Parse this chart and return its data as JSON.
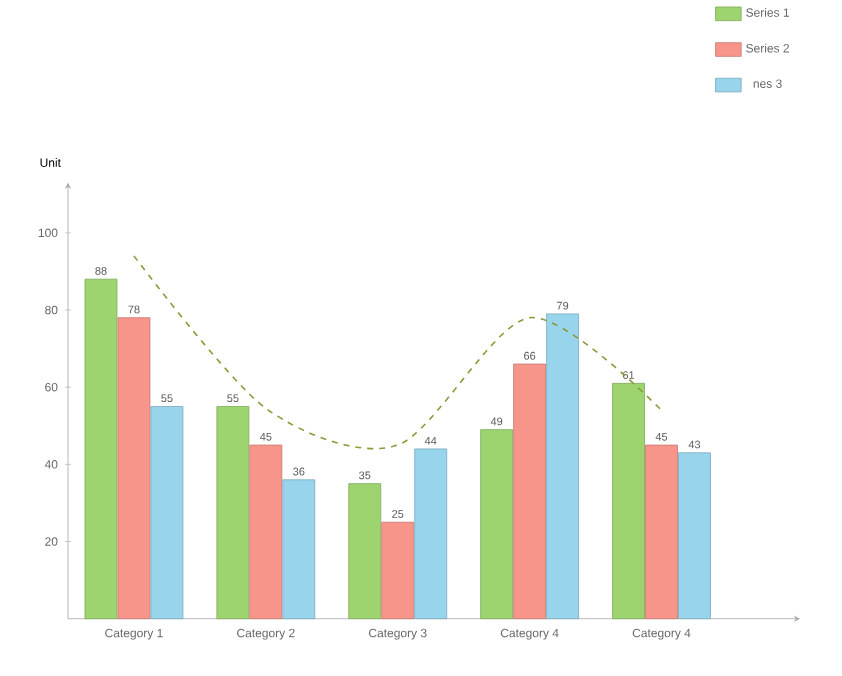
{
  "chart_data": {
    "type": "bar",
    "ylabel": "Unit",
    "categories": [
      "Category 1",
      "Category 2",
      "Category 3",
      "Category 4",
      "Category 4"
    ],
    "series": [
      {
        "name": "Series 1",
        "color": "#9ed46f",
        "values": [
          88,
          55,
          35,
          49,
          61
        ],
        "value_labels": [
          "88",
          "55",
          "35",
          "49",
          "61"
        ]
      },
      {
        "name": "Series 2",
        "color": "#f8958a",
        "values": [
          78,
          45,
          25,
          66,
          45
        ],
        "value_labels": [
          "78",
          "45",
          "25",
          "66",
          "45"
        ]
      },
      {
        "name": "nes 3",
        "color": "#98d4ec",
        "values": [
          55,
          36,
          44,
          79,
          43
        ],
        "value_labels": [
          "55",
          "36",
          "44",
          "79",
          "43"
        ]
      },
      {
        "type": "line",
        "color": "#8a9a3a",
        "line_style": "dashed",
        "values": [
          94,
          54.5,
          45,
          78,
          54
        ]
      }
    ],
    "ylim": [
      0,
      113
    ],
    "yticks": [
      20,
      40,
      60,
      80,
      100
    ],
    "legend": "top right",
    "grid": false
  }
}
